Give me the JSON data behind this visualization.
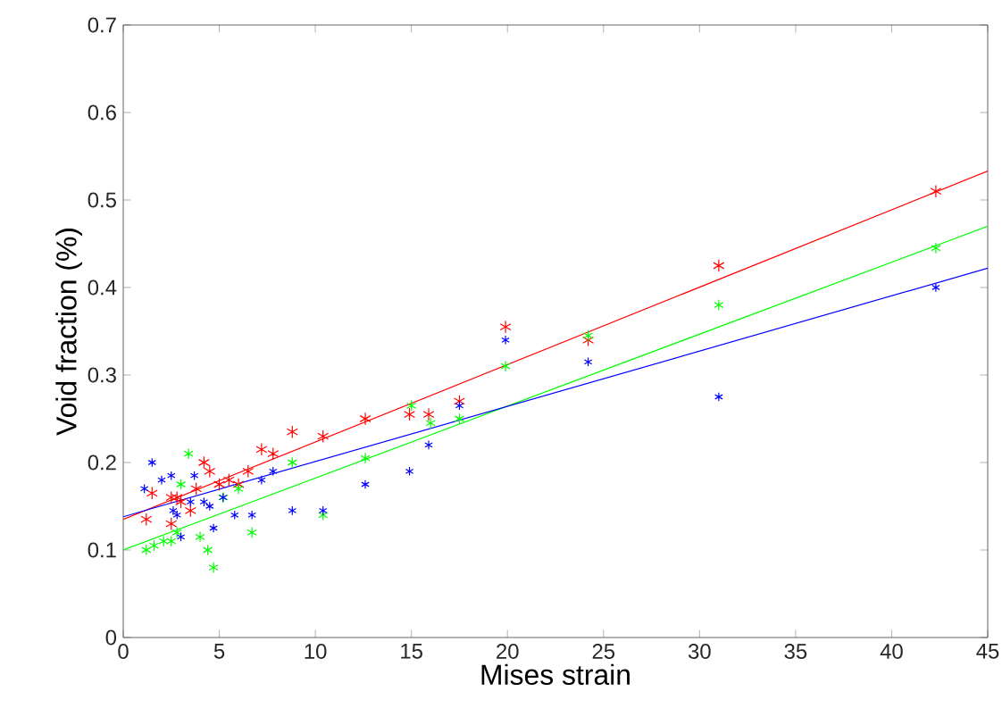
{
  "chart_data": {
    "type": "scatter",
    "xlabel": "Mises strain",
    "ylabel": "Void fraction (%)",
    "xlim": [
      0,
      45
    ],
    "ylim": [
      0,
      0.7
    ],
    "xticks": [
      0,
      5,
      10,
      15,
      20,
      25,
      30,
      35,
      40,
      45
    ],
    "yticks": [
      0,
      0.1,
      0.2,
      0.3,
      0.4,
      0.5,
      0.6,
      0.7
    ],
    "grid": false,
    "marker": "cross",
    "series": [
      {
        "color": "#ff0000",
        "x": [
          1.2,
          1.5,
          2.5,
          2.5,
          2.8,
          3,
          3.5,
          3.8,
          4.2,
          4.5,
          5,
          5.5,
          6,
          6.5,
          7.2,
          7.8,
          8.8,
          10.4,
          12.6,
          14.9,
          15.9,
          17.5,
          19.9,
          24.2,
          31,
          42.3
        ],
        "values": [
          0.135,
          0.165,
          0.16,
          0.13,
          0.16,
          0.155,
          0.145,
          0.17,
          0.2,
          0.19,
          0.175,
          0.18,
          0.175,
          0.19,
          0.215,
          0.21,
          0.235,
          0.23,
          0.25,
          0.255,
          0.255,
          0.27,
          0.355,
          0.34,
          0.425,
          0.51
        ]
      },
      {
        "color": "#00ff00",
        "x": [
          1.2,
          1.6,
          2.1,
          2.5,
          2.8,
          3,
          3.4,
          4,
          4.4,
          4.7,
          5.2,
          6,
          6.7,
          8.8,
          10.4,
          12.6,
          15,
          16,
          17.5,
          19.9,
          24.2,
          31,
          42.3
        ],
        "values": [
          0.1,
          0.105,
          0.11,
          0.11,
          0.12,
          0.175,
          0.21,
          0.115,
          0.1,
          0.08,
          0.16,
          0.17,
          0.12,
          0.2,
          0.14,
          0.205,
          0.265,
          0.245,
          0.25,
          0.31,
          0.345,
          0.38,
          0.445
        ]
      },
      {
        "color": "#0000ff",
        "x": [
          1.1,
          1.5,
          2,
          2.5,
          2.6,
          2.8,
          3,
          3.5,
          3.7,
          4.2,
          4.5,
          4.7,
          5.2,
          5.8,
          6.7,
          7.2,
          7.8,
          8.8,
          10.4,
          12.6,
          14.9,
          15.9,
          17.5,
          19.9,
          24.2,
          31,
          42.3
        ],
        "values": [
          0.17,
          0.2,
          0.18,
          0.185,
          0.145,
          0.14,
          0.115,
          0.155,
          0.185,
          0.155,
          0.15,
          0.125,
          0.16,
          0.14,
          0.14,
          0.18,
          0.19,
          0.145,
          0.145,
          0.175,
          0.19,
          0.22,
          0.265,
          0.34,
          0.315,
          0.275,
          0.4
        ]
      },
      {
        "type": "line",
        "marker": "none",
        "color": "#ff0000",
        "x": [
          0,
          45
        ],
        "values": [
          0.135,
          0.533
        ]
      },
      {
        "type": "line",
        "marker": "none",
        "color": "#00ff00",
        "x": [
          0,
          45
        ],
        "values": [
          0.1,
          0.47
        ]
      },
      {
        "type": "line",
        "marker": "none",
        "color": "#0000ff",
        "x": [
          0,
          45
        ],
        "values": [
          0.138,
          0.422
        ]
      }
    ]
  }
}
